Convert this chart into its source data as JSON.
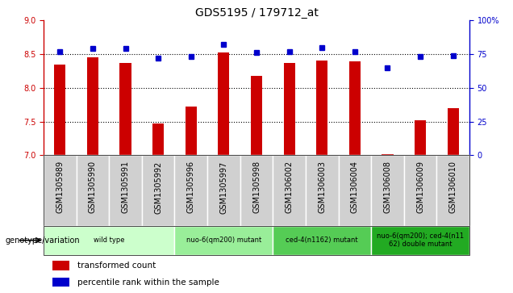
{
  "title": "GDS5195 / 179712_at",
  "samples": [
    "GSM1305989",
    "GSM1305990",
    "GSM1305991",
    "GSM1305992",
    "GSM1305996",
    "GSM1305997",
    "GSM1305998",
    "GSM1306002",
    "GSM1306003",
    "GSM1306004",
    "GSM1306008",
    "GSM1306009",
    "GSM1306010"
  ],
  "transformed_count": [
    8.35,
    8.45,
    8.37,
    7.47,
    7.72,
    8.52,
    8.18,
    8.37,
    8.41,
    8.39,
    7.02,
    7.52,
    7.7
  ],
  "percentile_rank": [
    77,
    79,
    79,
    72,
    73,
    82,
    76,
    77,
    80,
    77,
    65,
    73,
    74
  ],
  "ylim": [
    7,
    9
  ],
  "yticks": [
    7,
    7.5,
    8,
    8.5,
    9
  ],
  "right_ylim": [
    0,
    100
  ],
  "right_yticks": [
    0,
    25,
    50,
    75,
    100
  ],
  "right_yticklabels": [
    "0",
    "25",
    "50",
    "75",
    "100%"
  ],
  "bar_color": "#cc0000",
  "dot_color": "#0000cc",
  "group_defs": [
    {
      "label": "wild type",
      "start": 0,
      "end": 3,
      "color": "#ccffcc"
    },
    {
      "label": "nuo-6(qm200) mutant",
      "start": 4,
      "end": 6,
      "color": "#99ee99"
    },
    {
      "label": "ced-4(n1162) mutant",
      "start": 7,
      "end": 9,
      "color": "#55cc55"
    },
    {
      "label": "nuo-6(qm200); ced-4(n11\n62) double mutant",
      "start": 10,
      "end": 12,
      "color": "#22aa22"
    }
  ],
  "bar_width": 0.35,
  "legend_items": [
    {
      "label": "transformed count",
      "color": "#cc0000"
    },
    {
      "label": "percentile rank within the sample",
      "color": "#0000cc"
    }
  ],
  "genotype_label": "genotype/variation",
  "title_fontsize": 10,
  "tick_fontsize": 7,
  "sample_cell_color": "#d0d0d0",
  "sample_cell_edge_color": "#ffffff"
}
